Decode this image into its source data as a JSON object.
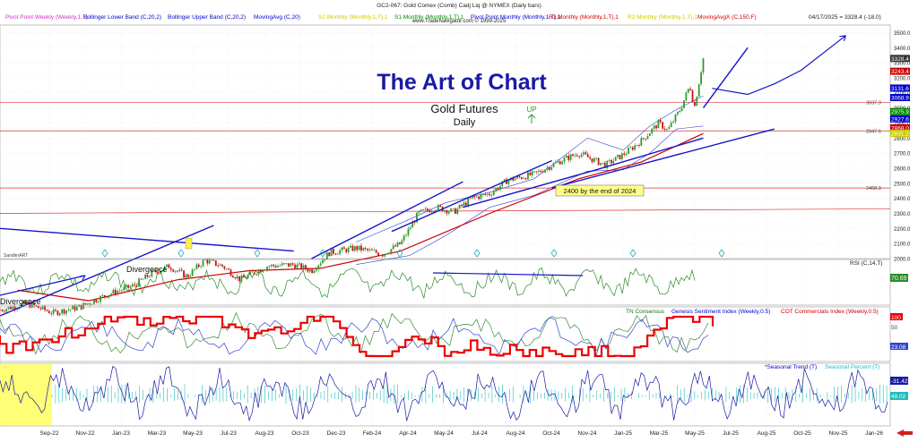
{
  "header": {
    "title": "GC2-067: Gold Comex (Comb) Cadj Liq @ NYMEX  (Daily bars)",
    "site": "www.TradeNavigator.com © 1999-2025",
    "date_readout": "04/17/2025 = 3328.4 (-18.0)",
    "indicators": [
      {
        "label": "Pivot Point Weekly (Weekly,1,T)",
        "color": "#cc33cc"
      },
      {
        "label": "Bollinger Lower Band (C,20,2)",
        "color": "#0000cc"
      },
      {
        "label": "Bollinger Upper Band (C,20,2)",
        "color": "#0000cc"
      },
      {
        "label": "MovingAvg (C,20)",
        "color": "#0000cc"
      },
      {
        "label": "S2 Monthly (Monthly,1,T),1",
        "color": "#cccc00"
      },
      {
        "label": "S1 Monthly (Monthly,1,T),1",
        "color": "#008800"
      },
      {
        "label": "Pivot Point Monthly (Monthly,1,T),1",
        "color": "#0000cc"
      },
      {
        "label": "R1 Monthly (Monthly,1,T),1",
        "color": "#cc0000"
      },
      {
        "label": "R2 Monthly (Monthly,1,T),1",
        "color": "#cccc00"
      },
      {
        "label": "MovingAvgX (C,150,F)",
        "color": "#cc0000"
      }
    ]
  },
  "annotations": {
    "main_title": "The Art of Chart",
    "subtitle": "Gold Futures",
    "subtitle2": "Daily",
    "up_label": "UP",
    "box_text": "2400 by the end of 2024",
    "divergence_upper": "Divergence",
    "divergence_lower": "Divergence",
    "watermark": "SandlerART"
  },
  "colors": {
    "title_blue": "#1a1aa6",
    "bull": "#2e9a2e",
    "bear": "#cc1111",
    "ma150": "#cc0000",
    "trend": "#1515c8",
    "rsi": "#2a8a2a",
    "cot": "#ee0000",
    "seasonal_trend": "#1a1aa6",
    "seasonal_percent": "#22bbbb"
  },
  "chart_data": {
    "type": "line",
    "price_axis": {
      "ylim": [
        2000,
        3550
      ],
      "ticks": [
        2000,
        2100,
        2200,
        2300,
        2400,
        2500,
        2600,
        2700,
        2800,
        2900,
        3000,
        3100,
        3200,
        3300,
        3400,
        3500
      ],
      "levels": [
        {
          "value": 3037.3,
          "label": "3037.3"
        },
        {
          "value": 2847.6,
          "label": "2847.6"
        },
        {
          "value": 2468.3,
          "label": "2468.3"
        }
      ],
      "tags": [
        {
          "value": 3328.4,
          "label": "3328.4",
          "color": "#333333"
        },
        {
          "value": 3243.4,
          "label": "3243.4",
          "color": "#cc0000"
        },
        {
          "value": 3131.6,
          "label": "3131.6",
          "color": "#0000cc"
        },
        {
          "value": 3068.9,
          "label": "3068.9",
          "color": "#0000cc"
        },
        {
          "value": 2975.9,
          "label": "2975.9",
          "color": "#008800"
        },
        {
          "value": 2927.6,
          "label": "2927.6",
          "color": "#0000cc"
        },
        {
          "value": 2868.0,
          "label": "2868.0",
          "color": "#cc0000"
        },
        {
          "value": 2831.2,
          "label": "2831.2",
          "color": "#cccc00"
        }
      ]
    },
    "x_axis": {
      "labels": [
        "Sep-22",
        "Nov-22",
        "Jan-23",
        "Mar-23",
        "May-23",
        "Jul-23",
        "Aug-23",
        "Oct-23",
        "Dec-23",
        "Feb-24",
        "Apr-24",
        "May-24",
        "Jul-24",
        "Aug-24",
        "Oct-24",
        "Nov-24",
        "Jan-25",
        "Mar-25",
        "May-25",
        "Jul-25",
        "Aug-25",
        "Oct-25",
        "Nov-25",
        "Jan-26"
      ]
    },
    "price_close": [
      [
        0,
        1660
      ],
      [
        0.03,
        1700
      ],
      [
        0.06,
        1640
      ],
      [
        0.09,
        1680
      ],
      [
        0.12,
        1760
      ],
      [
        0.15,
        1820
      ],
      [
        0.17,
        1900
      ],
      [
        0.19,
        1950
      ],
      [
        0.21,
        1880
      ],
      [
        0.23,
        1990
      ],
      [
        0.25,
        1950
      ],
      [
        0.27,
        1860
      ],
      [
        0.3,
        1950
      ],
      [
        0.33,
        1960
      ],
      [
        0.35,
        1920
      ],
      [
        0.37,
        2040
      ],
      [
        0.4,
        2070
      ],
      [
        0.43,
        2030
      ],
      [
        0.45,
        2100
      ],
      [
        0.47,
        2300
      ],
      [
        0.49,
        2340
      ],
      [
        0.51,
        2310
      ],
      [
        0.53,
        2400
      ],
      [
        0.55,
        2430
      ],
      [
        0.57,
        2520
      ],
      [
        0.6,
        2560
      ],
      [
        0.63,
        2650
      ],
      [
        0.65,
        2700
      ],
      [
        0.68,
        2620
      ],
      [
        0.7,
        2690
      ],
      [
        0.72,
        2780
      ],
      [
        0.74,
        2900
      ],
      [
        0.75,
        2850
      ],
      [
        0.765,
        3000
      ],
      [
        0.775,
        3150
      ],
      [
        0.78,
        3000
      ],
      [
        0.79,
        3328
      ]
    ],
    "ma150": [
      [
        0.02,
        1790
      ],
      [
        0.1,
        1720
      ],
      [
        0.2,
        1860
      ],
      [
        0.28,
        1920
      ],
      [
        0.36,
        1935
      ],
      [
        0.45,
        2050
      ],
      [
        0.55,
        2300
      ],
      [
        0.65,
        2530
      ],
      [
        0.72,
        2640
      ],
      [
        0.79,
        2830
      ]
    ],
    "bb_upper": [
      [
        0.4,
        2110
      ],
      [
        0.46,
        2260
      ],
      [
        0.5,
        2370
      ],
      [
        0.55,
        2440
      ],
      [
        0.6,
        2530
      ],
      [
        0.66,
        2800
      ],
      [
        0.7,
        2720
      ],
      [
        0.73,
        2880
      ],
      [
        0.76,
        2990
      ],
      [
        0.79,
        3080
      ]
    ],
    "bb_lower": [
      [
        0.4,
        1960
      ],
      [
        0.46,
        2020
      ],
      [
        0.5,
        2150
      ],
      [
        0.55,
        2340
      ],
      [
        0.6,
        2420
      ],
      [
        0.66,
        2580
      ],
      [
        0.7,
        2590
      ],
      [
        0.73,
        2700
      ],
      [
        0.76,
        2860
      ],
      [
        0.79,
        2880
      ]
    ],
    "trendlines": [
      {
        "points": [
          [
            0.0,
            1620
          ],
          [
            0.24,
            2220
          ]
        ]
      },
      {
        "points": [
          [
            0.0,
            2200
          ],
          [
            0.33,
            2050
          ]
        ]
      },
      {
        "points": [
          [
            0.35,
            2000
          ],
          [
            0.52,
            2510
          ]
        ]
      },
      {
        "points": [
          [
            0.44,
            2180
          ],
          [
            0.62,
            2650
          ]
        ]
      },
      {
        "points": [
          [
            0.52,
            2340
          ],
          [
            0.67,
            2590
          ]
        ]
      },
      {
        "points": [
          [
            0.62,
            2470
          ],
          [
            0.87,
            2860
          ]
        ]
      },
      {
        "points": [
          [
            0.67,
            2590
          ],
          [
            0.79,
            2800
          ]
        ]
      },
      {
        "points": [
          [
            0.79,
            3000
          ],
          [
            0.84,
            3400
          ]
        ]
      }
    ],
    "forecast": [
      [
        0.8,
        3130
      ],
      [
        0.84,
        3090
      ],
      [
        0.87,
        3160
      ],
      [
        0.9,
        3250
      ],
      [
        0.95,
        3480
      ]
    ],
    "rsi": {
      "label": "RSI (C,14,T)",
      "value": 70.69,
      "ylim": [
        20,
        90
      ]
    },
    "sentiment": {
      "labels": [
        "TN Consensus",
        "Genesis Sentiment Index (Weekly,0.5)",
        "COT Commercials Index (Weekly,0.5)"
      ],
      "tags": [
        "100",
        "23.08",
        "50"
      ]
    },
    "seasonal": {
      "labels": [
        "*Seasonal Trend (T)",
        "Seasonal Percent (T)"
      ],
      "tags": [
        "-31.42",
        "49.02"
      ]
    }
  }
}
